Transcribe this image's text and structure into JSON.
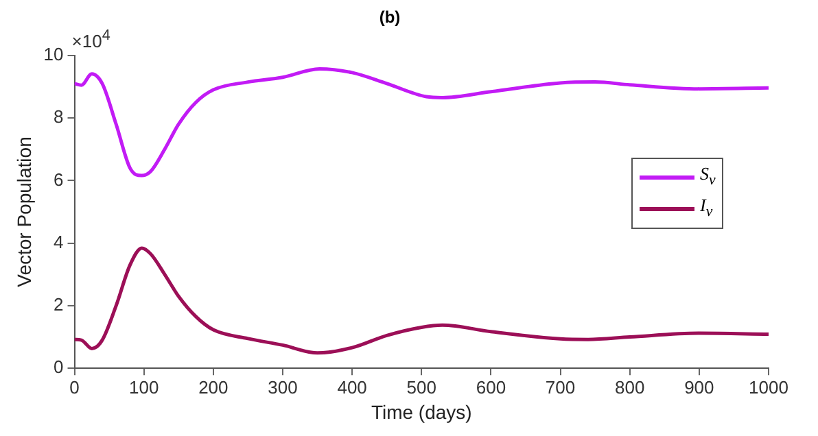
{
  "chart_data": {
    "type": "line",
    "title": "(b)",
    "xlabel": "Time (days)",
    "ylabel": "Vector Population",
    "annotations": [
      "×10$^{4}$"
    ],
    "series": [
      {
        "name": "S$_{v}$",
        "color": "#c21bf5",
        "x": [
          0,
          10,
          25,
          40,
          60,
          80,
          97,
          110,
          130,
          150,
          175,
          200,
          250,
          300,
          353,
          400,
          450,
          507,
          530,
          600,
          700,
          750,
          800,
          900,
          1000
        ],
        "values": [
          9.1,
          9.05,
          9.41,
          9.1,
          7.8,
          6.4,
          6.16,
          6.3,
          7.0,
          7.8,
          8.5,
          8.9,
          9.15,
          9.3,
          9.57,
          9.45,
          9.1,
          8.68,
          8.65,
          8.84,
          9.12,
          9.15,
          9.06,
          8.93,
          8.96
        ]
      },
      {
        "name": "I$_{v}$",
        "color": "#9c0f57",
        "x": [
          0,
          10,
          25,
          40,
          60,
          80,
          97,
          110,
          130,
          150,
          175,
          200,
          250,
          300,
          350,
          400,
          450,
          500,
          530,
          600,
          700,
          740,
          800,
          900,
          1000
        ],
        "values": [
          0.92,
          0.9,
          0.63,
          0.9,
          2.0,
          3.3,
          3.84,
          3.65,
          3.0,
          2.3,
          1.65,
          1.23,
          0.95,
          0.74,
          0.49,
          0.66,
          1.05,
          1.31,
          1.38,
          1.17,
          0.94,
          0.92,
          1.0,
          1.12,
          1.09
        ]
      }
    ],
    "xlim": [
      0,
      1000
    ],
    "xticks": [
      0,
      100,
      200,
      300,
      400,
      500,
      600,
      700,
      800,
      900,
      1000
    ],
    "ylim": [
      0,
      10
    ],
    "yticks": [
      0,
      2,
      4,
      6,
      8,
      10
    ],
    "grid": false,
    "legend": "right",
    "marker": "none",
    "line_style": "solid"
  }
}
